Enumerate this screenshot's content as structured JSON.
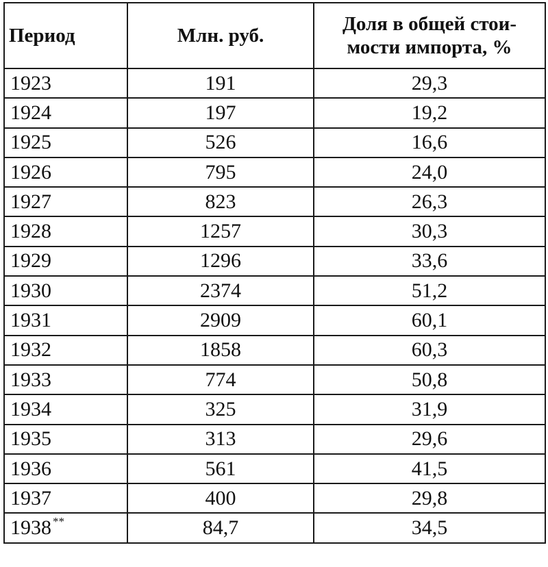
{
  "headers": {
    "period": "Период",
    "mln_rub": "Млн. руб.",
    "share_line1": "Доля в общей стои-",
    "share_line2": "мости импорта, %"
  },
  "rows": [
    {
      "period": "1923",
      "mln": "191",
      "share": "29,3"
    },
    {
      "period": "1924",
      "mln": "197",
      "share": "19,2"
    },
    {
      "period": "1925",
      "mln": "526",
      "share": "16,6"
    },
    {
      "period": "1926",
      "mln": "795",
      "share": "24,0"
    },
    {
      "period": "1927",
      "mln": "823",
      "share": "26,3"
    },
    {
      "period": "1928",
      "mln": "1257",
      "share": "30,3"
    },
    {
      "period": "1929",
      "mln": "1296",
      "share": "33,6"
    },
    {
      "period": "1930",
      "mln": "2374",
      "share": "51,2"
    },
    {
      "period": "1931",
      "mln": "2909",
      "share": "60,1"
    },
    {
      "period": "1932",
      "mln": "1858",
      "share": "60,3"
    },
    {
      "period": "1933",
      "mln": "774",
      "share": "50,8"
    },
    {
      "period": "1934",
      "mln": "325",
      "share": "31,9"
    },
    {
      "period": "1935",
      "mln": "313",
      "share": "29,6"
    },
    {
      "period": "1936",
      "mln": "561",
      "share": "41,5"
    },
    {
      "period": "1937",
      "mln": "400",
      "share": "29,8"
    },
    {
      "period": "1938",
      "note": "**",
      "mln": "84,7",
      "share": "34,5"
    }
  ]
}
